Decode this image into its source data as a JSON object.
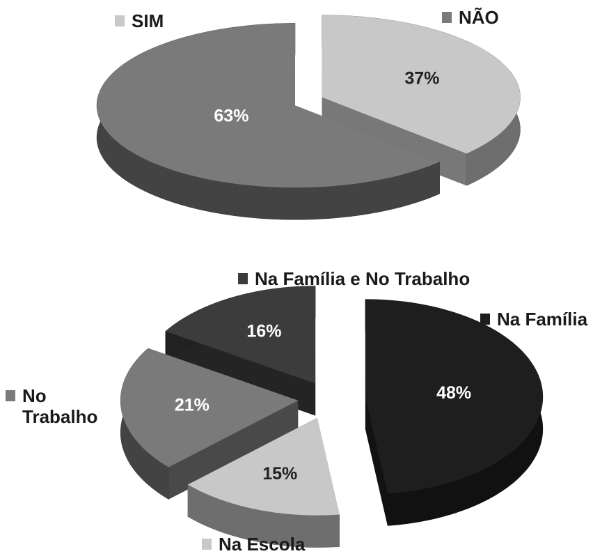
{
  "chart_data": [
    {
      "type": "pie",
      "categories": [
        "SIM",
        "NÃO"
      ],
      "values": [
        37,
        63
      ],
      "value_labels": [
        "37%",
        "63%"
      ],
      "colors": [
        "#c8c8c8",
        "#7a7a7a"
      ]
    },
    {
      "type": "pie",
      "categories": [
        "Na Família",
        "Na Escola",
        "No Trabalho",
        "Na Família e No Trabalho"
      ],
      "values": [
        48,
        15,
        21,
        16
      ],
      "value_labels": [
        "48%",
        "15%",
        "21%",
        "16%"
      ],
      "colors": [
        "#1e1e1e",
        "#c8c8c8",
        "#7a7a7a",
        "#3c3c3c"
      ]
    }
  ]
}
